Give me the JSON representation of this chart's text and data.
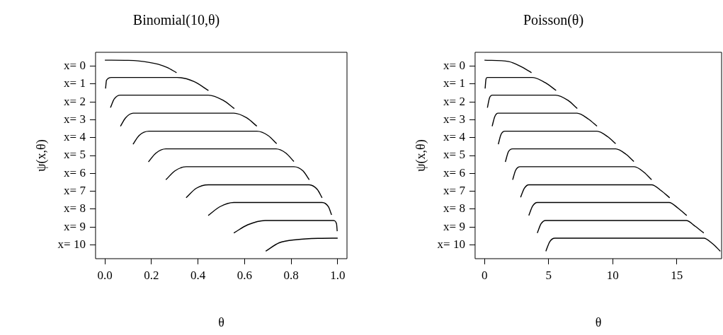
{
  "chart_data": [
    {
      "type": "line",
      "title": "Binomial(10,θ)",
      "xlabel": "θ",
      "ylabel": "ψ(x,θ)",
      "xlim": [
        -0.04,
        1.04
      ],
      "xticks": [
        {
          "value": 0,
          "label": "0.0"
        },
        0.2,
        0.4,
        0.6,
        0.8,
        {
          "value": 1,
          "label": "1.0"
        }
      ],
      "ylim": [
        10.78,
        -0.78
      ],
      "yticks": [
        {
          "value": 0,
          "label": "x= 0"
        },
        {
          "value": 1,
          "label": "x= 1"
        },
        {
          "value": 2,
          "label": "x= 2"
        },
        {
          "value": 3,
          "label": "x= 3"
        },
        {
          "value": 4,
          "label": "x= 4"
        },
        {
          "value": 5,
          "label": "x= 5"
        },
        {
          "value": 6,
          "label": "x= 6"
        },
        {
          "value": 7,
          "label": "x= 7"
        },
        {
          "value": 8,
          "label": "x= 8"
        },
        {
          "value": 9,
          "label": "x= 9"
        },
        {
          "value": 10,
          "label": "x= 10"
        }
      ],
      "grid": false,
      "legend": false,
      "marker": "none",
      "series": [
        {
          "color": "#000000",
          "x": [
            0,
            0.1,
            0.142,
            0.229,
            0.267,
            0.308
          ],
          "values": [
            -0.34,
            -0.33,
            -0.3,
            -0.11,
            0.07,
            0.36
          ]
        },
        {
          "color": "#000000",
          "x": [
            0.003,
            0.007,
            0.028,
            0.31,
            0.383,
            0.445
          ],
          "values": [
            1.25,
            0.79,
            0.63,
            0.63,
            0.86,
            1.36
          ]
        },
        {
          "color": "#000000",
          "x": [
            0.024,
            0.04,
            0.067,
            0.444,
            0.508,
            0.556
          ],
          "values": [
            2.32,
            1.84,
            1.62,
            1.62,
            1.91,
            2.37
          ]
        },
        {
          "color": "#000000",
          "x": [
            0.067,
            0.089,
            0.122,
            0.554,
            0.609,
            0.653
          ],
          "values": [
            3.36,
            2.89,
            2.63,
            2.63,
            2.89,
            3.36
          ]
        },
        {
          "color": "#000000",
          "x": [
            0.121,
            0.147,
            0.19,
            0.653,
            0.701,
            0.738
          ],
          "values": [
            4.37,
            3.88,
            3.64,
            3.64,
            3.88,
            4.34
          ]
        },
        {
          "color": "#000000",
          "x": [
            0.187,
            0.219,
            0.262,
            0.735,
            0.778,
            0.812
          ],
          "values": [
            5.36,
            4.87,
            4.63,
            4.63,
            4.87,
            5.34
          ]
        },
        {
          "color": "#000000",
          "x": [
            0.262,
            0.301,
            0.349,
            0.812,
            0.851,
            0.878
          ],
          "values": [
            6.36,
            5.86,
            5.63,
            5.63,
            5.86,
            6.36
          ]
        },
        {
          "color": "#000000",
          "x": [
            0.349,
            0.392,
            0.444,
            0.878,
            0.913,
            0.933
          ],
          "values": [
            7.37,
            6.84,
            6.64,
            6.64,
            6.91,
            7.37
          ]
        },
        {
          "color": "#000000",
          "x": [
            0.444,
            0.494,
            0.554,
            0.933,
            0.96,
            0.974
          ],
          "values": [
            8.36,
            7.87,
            7.63,
            7.63,
            7.87,
            8.33
          ]
        },
        {
          "color": "#000000",
          "x": [
            0.554,
            0.614,
            0.689,
            0.981,
            0.995,
            0.998
          ],
          "values": [
            9.34,
            8.88,
            8.64,
            8.64,
            8.82,
            9.24
          ]
        },
        {
          "color": "#000000",
          "x": [
            0.691,
            0.749,
            0.826,
            0.923,
            1.0
          ],
          "values": [
            10.36,
            9.89,
            9.71,
            9.64,
            9.63
          ]
        }
      ]
    },
    {
      "type": "line",
      "title": "Poisson(θ)",
      "xlabel": "θ",
      "ylabel": "ψ(x,θ)",
      "xlim": [
        -0.73,
        18.5
      ],
      "xticks": [
        0,
        5,
        10,
        15
      ],
      "ylim": [
        10.78,
        -0.78
      ],
      "yticks": [
        {
          "value": 0,
          "label": "x= 0"
        },
        {
          "value": 1,
          "label": "x= 1"
        },
        {
          "value": 2,
          "label": "x= 2"
        },
        {
          "value": 3,
          "label": "x= 3"
        },
        {
          "value": 4,
          "label": "x= 4"
        },
        {
          "value": 5,
          "label": "x= 5"
        },
        {
          "value": 6,
          "label": "x= 6"
        },
        {
          "value": 7,
          "label": "x= 7"
        },
        {
          "value": 8,
          "label": "x= 8"
        },
        {
          "value": 9,
          "label": "x= 9"
        },
        {
          "value": 10,
          "label": "x= 10"
        }
      ],
      "grid": false,
      "legend": false,
      "marker": "none",
      "series": [
        {
          "color": "#000000",
          "x": [
            0,
            1.9,
            2.79,
            3.67
          ],
          "values": [
            -0.34,
            -0.26,
            0,
            0.36
          ]
        },
        {
          "color": "#000000",
          "x": [
            0.05,
            0.12,
            0.21,
            3.73,
            4.74,
            5.59
          ],
          "values": [
            1.25,
            0.72,
            0.63,
            0.63,
            0.92,
            1.36
          ]
        },
        {
          "color": "#000000",
          "x": [
            0.23,
            0.39,
            0.62,
            5.54,
            6.51,
            7.24
          ],
          "values": [
            2.32,
            1.78,
            1.62,
            1.62,
            1.91,
            2.37
          ]
        },
        {
          "color": "#000000",
          "x": [
            0.6,
            0.8,
            1.06,
            7.22,
            8.11,
            8.78
          ],
          "values": [
            3.36,
            2.83,
            2.63,
            2.63,
            2.96,
            3.36
          ]
        },
        {
          "color": "#000000",
          "x": [
            1.08,
            1.28,
            1.6,
            8.78,
            9.62,
            10.24
          ],
          "values": [
            4.37,
            3.84,
            3.64,
            3.64,
            3.95,
            4.34
          ]
        },
        {
          "color": "#000000",
          "x": [
            1.63,
            1.86,
            2.2,
            10.24,
            11.04,
            11.66
          ],
          "values": [
            5.36,
            4.8,
            4.63,
            4.63,
            4.93,
            5.34
          ]
        },
        {
          "color": "#000000",
          "x": [
            2.2,
            2.43,
            2.79,
            11.69,
            12.46,
            13.04
          ],
          "values": [
            6.36,
            5.83,
            5.63,
            5.63,
            5.95,
            6.36
          ]
        },
        {
          "color": "#000000",
          "x": [
            2.82,
            3.11,
            3.46,
            13.04,
            13.79,
            14.45
          ],
          "values": [
            7.34,
            6.84,
            6.64,
            6.64,
            6.97,
            7.37
          ]
        },
        {
          "color": "#000000",
          "x": [
            3.46,
            3.76,
            4.12,
            14.41,
            15.12,
            15.78
          ],
          "values": [
            8.36,
            7.83,
            7.63,
            7.63,
            7.96,
            8.36
          ]
        },
        {
          "color": "#000000",
          "x": [
            4.12,
            4.42,
            4.77,
            15.74,
            16.45,
            17.11
          ],
          "values": [
            9.34,
            8.82,
            8.64,
            8.64,
            8.97,
            9.34
          ]
        },
        {
          "color": "#000000",
          "x": [
            4.79,
            5.09,
            5.5,
            17.11,
            17.78,
            18.4
          ],
          "values": [
            10.36,
            9.83,
            9.63,
            9.63,
            9.93,
            10.36
          ]
        }
      ]
    }
  ]
}
